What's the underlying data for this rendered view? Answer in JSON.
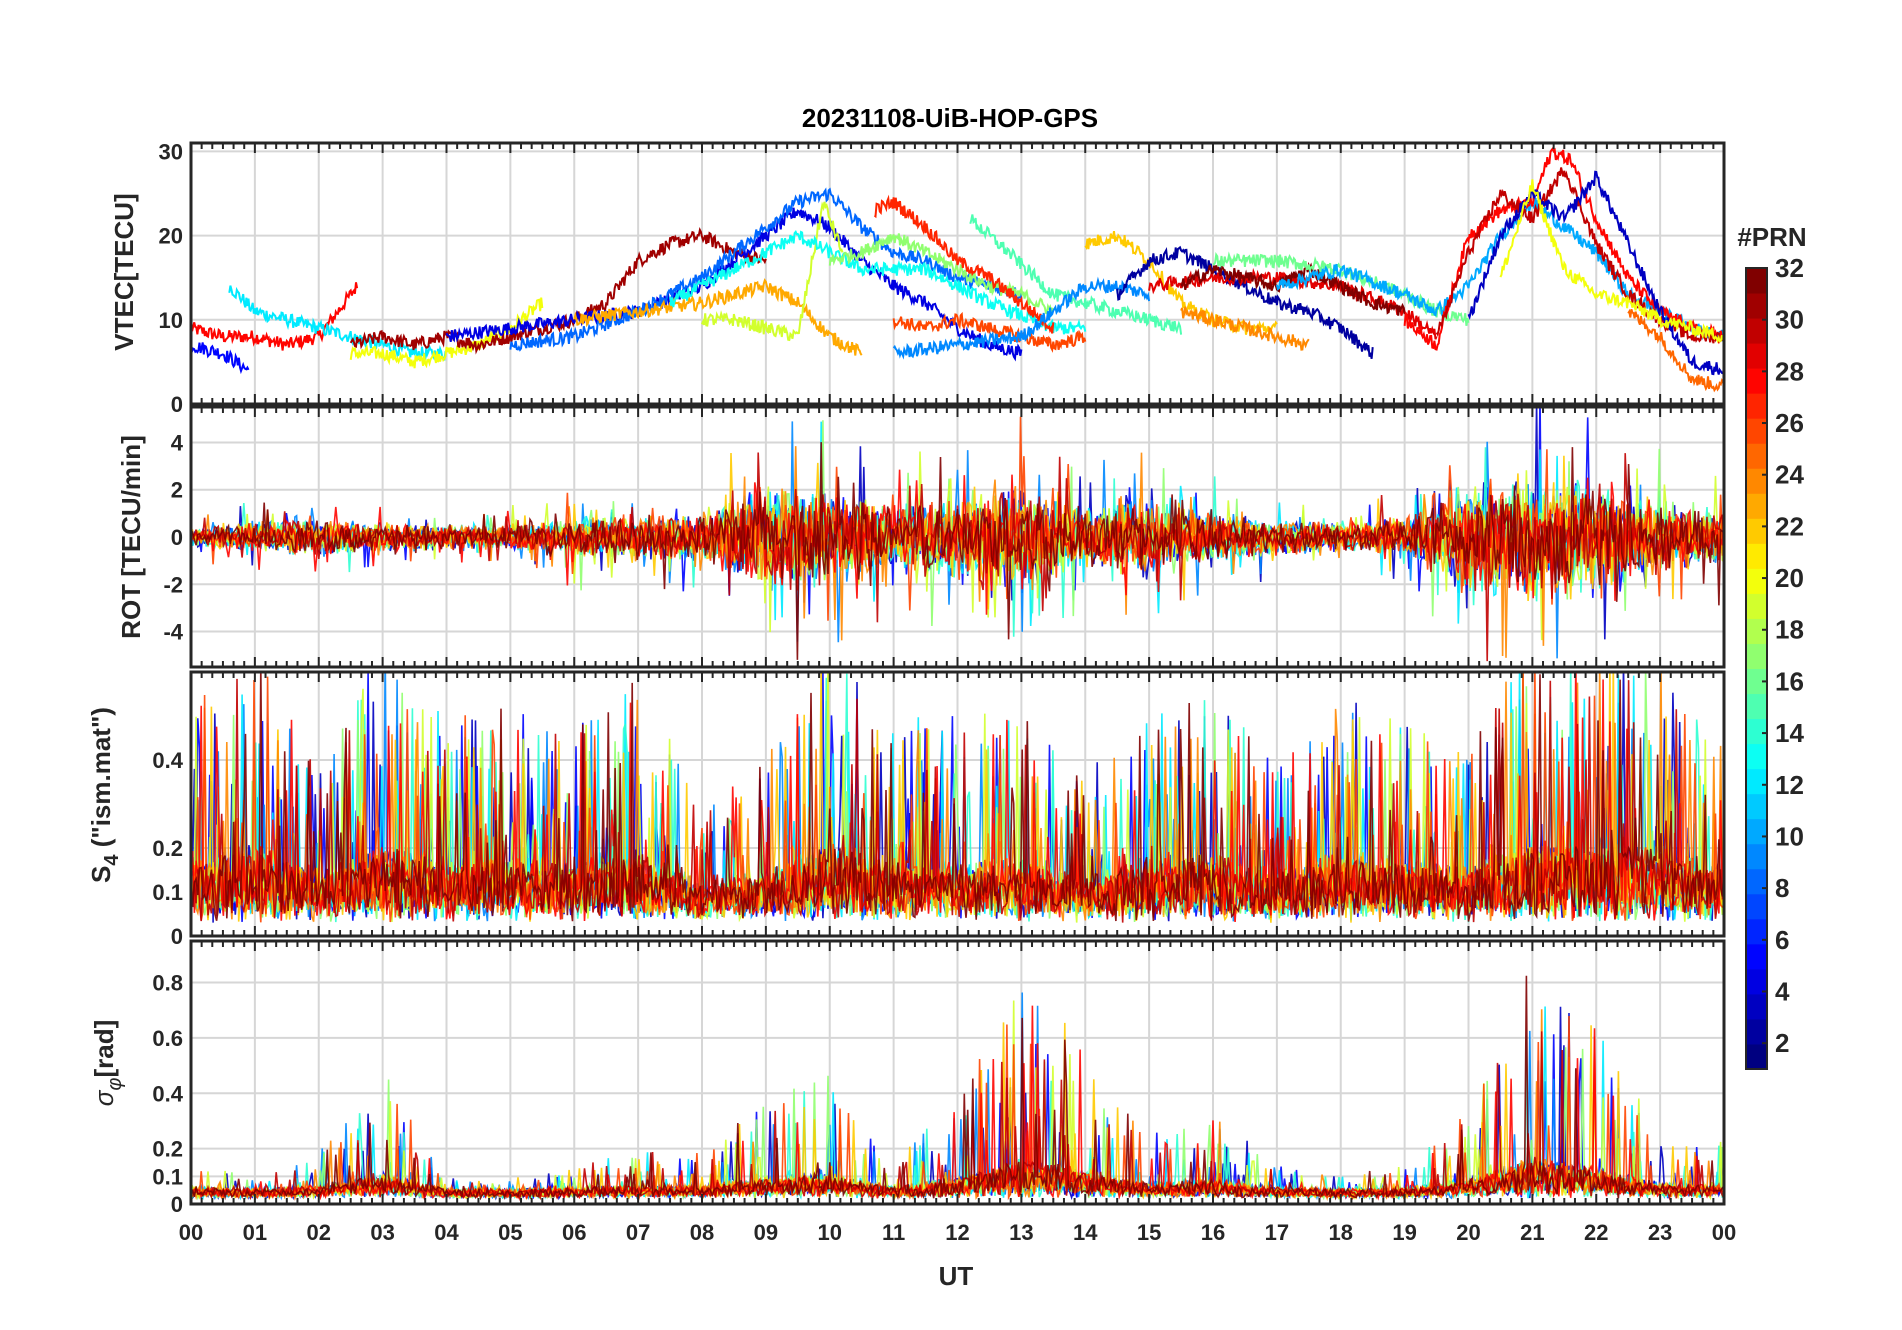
{
  "title": "20231108-UiB-HOP-GPS",
  "x_axis": {
    "label": "UT",
    "ticks": [
      "00",
      "01",
      "02",
      "03",
      "04",
      "05",
      "06",
      "07",
      "08",
      "09",
      "10",
      "11",
      "12",
      "13",
      "14",
      "15",
      "16",
      "17",
      "18",
      "19",
      "20",
      "21",
      "22",
      "23",
      "00"
    ]
  },
  "colorbar": {
    "title": "#PRN",
    "range": [
      1,
      32
    ],
    "ticks": [
      2,
      4,
      6,
      8,
      10,
      12,
      14,
      16,
      18,
      20,
      22,
      24,
      26,
      28,
      30,
      32
    ],
    "colormap": "jet"
  },
  "chart_data": [
    {
      "type": "line",
      "panel": "VTEC",
      "ylabel": "VTEC[TECU]",
      "ylim": [
        0,
        31
      ],
      "yticks": [
        0,
        10,
        20,
        30
      ],
      "x_unit": "hours UT",
      "series": [
        {
          "prn": 28,
          "x": [
            0,
            0.5,
            1,
            1.5,
            2,
            2.6
          ],
          "y": [
            9,
            8,
            8,
            7,
            8,
            14
          ]
        },
        {
          "prn": 12,
          "x": [
            0.6,
            1,
            1.5,
            2,
            2.5,
            3,
            3.5,
            4
          ],
          "y": [
            14,
            11,
            10,
            9,
            8,
            7,
            6,
            6
          ]
        },
        {
          "prn": 5,
          "x": [
            0,
            0.5,
            0.9
          ],
          "y": [
            7,
            6,
            4
          ]
        },
        {
          "prn": 20,
          "x": [
            2.5,
            3,
            3.5,
            4,
            4.5,
            5,
            5.5
          ],
          "y": [
            6,
            6,
            5,
            6,
            7,
            9,
            12
          ]
        },
        {
          "prn": 31,
          "x": [
            2.5,
            3,
            3.5,
            4,
            4.5,
            5,
            5.5,
            6,
            6.5,
            7,
            7.5,
            8,
            8.5,
            9
          ],
          "y": [
            7,
            8,
            7,
            8,
            7,
            8,
            9,
            10,
            12,
            17,
            19,
            20,
            18,
            17
          ]
        },
        {
          "prn": 4,
          "x": [
            4,
            5,
            6,
            7,
            8,
            9,
            9.5,
            10,
            10.5,
            11,
            11.5,
            12,
            12.5,
            13
          ],
          "y": [
            8,
            9,
            10,
            11,
            14,
            20,
            23,
            21,
            17,
            14,
            12,
            9,
            7,
            6
          ]
        },
        {
          "prn": 8,
          "x": [
            5,
            6,
            7,
            8,
            9,
            9.5,
            10,
            10.5,
            11,
            11.5,
            12,
            12.5,
            13
          ],
          "y": [
            7,
            8,
            11,
            15,
            21,
            24,
            25,
            21,
            18,
            17,
            15,
            14,
            13
          ]
        },
        {
          "prn": 23,
          "x": [
            6,
            7,
            8,
            9,
            9.5,
            10,
            10.5
          ],
          "y": [
            10,
            11,
            12,
            14,
            12,
            8,
            6
          ]
        },
        {
          "prn": 19,
          "x": [
            8,
            8.5,
            9,
            9.5,
            9.9,
            10.2
          ],
          "y": [
            10,
            10,
            9,
            8,
            24,
            18
          ]
        },
        {
          "prn": 13,
          "x": [
            7.5,
            8.5,
            9.5,
            10.5,
            11.5,
            12.5,
            13.5,
            14
          ],
          "y": [
            12,
            16,
            20,
            16,
            16,
            12,
            9,
            9
          ]
        },
        {
          "prn": 17,
          "x": [
            10,
            10.5,
            11,
            11.5,
            12,
            12.5,
            13,
            13.5
          ],
          "y": [
            17,
            18,
            20,
            18,
            16,
            14,
            13,
            11
          ]
        },
        {
          "prn": 27,
          "x": [
            10.7,
            11,
            11.5,
            12,
            12.5,
            13,
            13.5
          ],
          "y": [
            23,
            24,
            21,
            17,
            15,
            12,
            9
          ]
        },
        {
          "prn": 26,
          "x": [
            11,
            11.5,
            12,
            12.5,
            13,
            13.5,
            14
          ],
          "y": [
            10,
            9,
            10,
            9,
            8,
            7,
            8
          ]
        },
        {
          "prn": 15,
          "x": [
            12.2,
            12.8,
            13.5,
            14,
            14.5,
            15,
            15.5
          ],
          "y": [
            22,
            18,
            13,
            12,
            11,
            10,
            9
          ]
        },
        {
          "prn": 9,
          "x": [
            11,
            12,
            13,
            13.5,
            14,
            14.5,
            15
          ],
          "y": [
            6,
            7,
            8,
            11,
            14,
            14,
            13
          ]
        },
        {
          "prn": 22,
          "x": [
            14,
            14.5,
            15,
            15.5,
            16,
            16.5,
            17
          ],
          "y": [
            19,
            20,
            17,
            12,
            10,
            9,
            9
          ]
        },
        {
          "prn": 2,
          "x": [
            14.5,
            15,
            15.5,
            16,
            16.5,
            17,
            17.5,
            18,
            18.5
          ],
          "y": [
            13,
            17,
            18,
            16,
            14,
            12,
            11,
            9,
            6
          ]
        },
        {
          "prn": 29,
          "x": [
            15,
            16,
            17,
            18,
            19,
            19.5
          ],
          "y": [
            14,
            15,
            15,
            14,
            11,
            8
          ]
        },
        {
          "prn": 32,
          "x": [
            15.5,
            16,
            16.5,
            17,
            17.5,
            18,
            18.5,
            19
          ],
          "y": [
            14,
            16,
            15,
            14,
            16,
            14,
            12,
            11
          ]
        },
        {
          "prn": 24,
          "x": [
            15.5,
            16,
            16.5,
            17,
            17.5
          ],
          "y": [
            11,
            10,
            9,
            8,
            7
          ]
        },
        {
          "prn": 16,
          "x": [
            16,
            17,
            18,
            19,
            19.5,
            20
          ],
          "y": [
            17,
            17,
            16,
            13,
            11,
            10
          ]
        },
        {
          "prn": 10,
          "x": [
            17,
            18,
            19,
            19.5,
            20,
            20.5,
            21,
            21.5,
            22,
            22.5,
            23,
            23.5,
            24
          ],
          "y": [
            14,
            16,
            13,
            11,
            14,
            20,
            24,
            21,
            18,
            13,
            11,
            9,
            8
          ]
        },
        {
          "prn": 28,
          "x": [
            19,
            19.5,
            20,
            20.5,
            21,
            21.3,
            21.6,
            22,
            22.5,
            23,
            23.5,
            24
          ],
          "y": [
            10,
            7,
            20,
            23,
            24,
            30,
            29,
            22,
            15,
            11,
            9,
            8
          ]
        },
        {
          "prn": 30,
          "x": [
            19.5,
            20,
            20.5,
            21,
            21.5,
            22,
            22.5,
            23,
            23.5,
            24
          ],
          "y": [
            8,
            18,
            25,
            22,
            28,
            19,
            13,
            10,
            8,
            8
          ]
        },
        {
          "prn": 3,
          "x": [
            20,
            20.5,
            21,
            21.5,
            22,
            22.5,
            23,
            23.5,
            24
          ],
          "y": [
            10,
            20,
            25,
            22,
            27,
            19,
            11,
            5,
            4
          ]
        },
        {
          "prn": 20,
          "x": [
            20.5,
            21,
            21.5,
            22,
            22.5,
            23,
            23.5,
            24
          ],
          "y": [
            15,
            26,
            16,
            13,
            12,
            10,
            9,
            8
          ]
        },
        {
          "prn": 25,
          "x": [
            22.5,
            23,
            23.5,
            24
          ],
          "y": [
            11,
            8,
            3,
            2
          ]
        }
      ]
    },
    {
      "type": "line",
      "panel": "ROT",
      "ylabel": "ROT [TECU/min]",
      "ylim": [
        -5.5,
        5.5
      ],
      "yticks": [
        -4,
        -2,
        0,
        2,
        4
      ],
      "x_unit": "hours UT",
      "envelope_description_values": {
        "x": [
          0,
          1,
          2,
          3,
          4,
          5,
          6,
          7,
          8,
          9,
          10,
          11,
          12,
          13,
          14,
          15,
          16,
          17,
          18,
          19,
          20,
          21,
          22,
          23,
          24
        ],
        "amplitude": [
          0.8,
          1.2,
          1.5,
          1.2,
          1.0,
          1.0,
          1.6,
          1.8,
          2.0,
          4.5,
          4.0,
          2.5,
          3.5,
          4.5,
          2.5,
          3.0,
          2.0,
          1.5,
          1.2,
          1.5,
          4.5,
          5.5,
          4.5,
          3.0,
          2.0
        ]
      }
    },
    {
      "type": "line",
      "panel": "S4",
      "ylabel": "S4 (\"ism.mat\")",
      "ylim": [
        0,
        0.6
      ],
      "yticks": [
        0,
        0.1,
        0.2,
        0.4
      ],
      "x_unit": "hours UT",
      "envelope_description_values": {
        "x": [
          0,
          1,
          2,
          3,
          4,
          5,
          6,
          7,
          8,
          9,
          10,
          11,
          12,
          13,
          14,
          15,
          16,
          17,
          18,
          19,
          20,
          21,
          22,
          23,
          24
        ],
        "peak": [
          0.45,
          0.6,
          0.35,
          0.6,
          0.45,
          0.45,
          0.45,
          0.55,
          0.25,
          0.35,
          0.6,
          0.45,
          0.45,
          0.45,
          0.3,
          0.45,
          0.5,
          0.35,
          0.5,
          0.45,
          0.4,
          0.6,
          0.6,
          0.55,
          0.4
        ]
      }
    },
    {
      "type": "line",
      "panel": "sigma_phi",
      "ylabel": "σφ[rad]",
      "ylim": [
        0,
        0.95
      ],
      "yticks": [
        0,
        0.1,
        0.2,
        0.4,
        0.6,
        0.8
      ],
      "x_unit": "hours UT",
      "envelope_description_values": {
        "x": [
          0,
          1,
          2,
          3,
          4,
          5,
          6,
          7,
          8,
          9,
          10,
          11,
          12,
          13,
          14,
          15,
          16,
          17,
          18,
          19,
          20,
          21,
          22,
          23,
          24
        ],
        "peak": [
          0.1,
          0.05,
          0.15,
          0.45,
          0.05,
          0.05,
          0.1,
          0.15,
          0.15,
          0.35,
          0.45,
          0.1,
          0.35,
          0.78,
          0.55,
          0.2,
          0.3,
          0.1,
          0.05,
          0.1,
          0.3,
          0.85,
          0.6,
          0.2,
          0.2
        ]
      }
    }
  ]
}
